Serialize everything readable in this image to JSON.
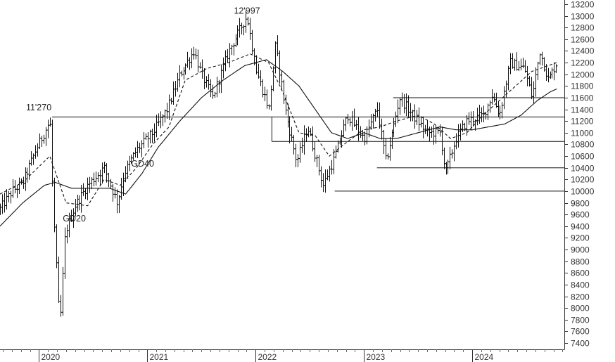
{
  "chart_data": {
    "type": "ohlc",
    "title": "",
    "xlabel": "",
    "ylabel": "",
    "ylim": [
      7400,
      13200
    ],
    "y_ticks": [
      7400,
      7600,
      7800,
      8000,
      8200,
      8400,
      8600,
      8800,
      9000,
      9200,
      9400,
      9600,
      9800,
      10000,
      10200,
      10400,
      10600,
      10800,
      11000,
      11200,
      11400,
      11600,
      11800,
      12000,
      12200,
      12400,
      12600,
      12800,
      13000,
      13200
    ],
    "x_range": [
      2019.64,
      2024.85
    ],
    "x_ticks": [
      {
        "label": "2020",
        "x": 2020.0
      },
      {
        "label": "2021",
        "x": 2021.0
      },
      {
        "label": "2022",
        "x": 2022.0
      },
      {
        "label": "2023",
        "x": 2023.0
      },
      {
        "label": "2024",
        "x": 2024.0
      }
    ],
    "price_keypoints": [
      [
        2019.64,
        9700
      ],
      [
        2019.75,
        10000
      ],
      [
        2019.85,
        10150
      ],
      [
        2019.97,
        10700
      ],
      [
        2020.1,
        11200
      ],
      [
        2020.13,
        9700
      ],
      [
        2020.19,
        7650
      ],
      [
        2020.24,
        9300
      ],
      [
        2020.33,
        9750
      ],
      [
        2020.45,
        10100
      ],
      [
        2020.6,
        10400
      ],
      [
        2020.72,
        9800
      ],
      [
        2020.78,
        10300
      ],
      [
        2020.9,
        10700
      ],
      [
        2021.05,
        11000
      ],
      [
        2021.18,
        11400
      ],
      [
        2021.3,
        12000
      ],
      [
        2021.43,
        12400
      ],
      [
        2021.5,
        12000
      ],
      [
        2021.6,
        11600
      ],
      [
        2021.75,
        12400
      ],
      [
        2021.92,
        12997
      ],
      [
        2022.0,
        12100
      ],
      [
        2022.12,
        11400
      ],
      [
        2022.18,
        12500
      ],
      [
        2022.28,
        11300
      ],
      [
        2022.38,
        10500
      ],
      [
        2022.48,
        11100
      ],
      [
        2022.62,
        10100
      ],
      [
        2022.72,
        10550
      ],
      [
        2022.85,
        11300
      ],
      [
        2023.0,
        10900
      ],
      [
        2023.12,
        11400
      ],
      [
        2023.2,
        10500
      ],
      [
        2023.33,
        11600
      ],
      [
        2023.45,
        11300
      ],
      [
        2023.58,
        11000
      ],
      [
        2023.7,
        11000
      ],
      [
        2023.75,
        10300
      ],
      [
        2023.85,
        10900
      ],
      [
        2023.95,
        11200
      ],
      [
        2024.1,
        11300
      ],
      [
        2024.18,
        11650
      ],
      [
        2024.25,
        11300
      ],
      [
        2024.35,
        12200
      ],
      [
        2024.48,
        12100
      ],
      [
        2024.55,
        11600
      ],
      [
        2024.62,
        12400
      ],
      [
        2024.7,
        11900
      ],
      [
        2024.78,
        12200
      ]
    ],
    "series": [
      {
        "name": "GD20",
        "style": "dashed",
        "keypoints": [
          [
            2019.64,
            9950
          ],
          [
            2019.85,
            10150
          ],
          [
            2020.1,
            10600
          ],
          [
            2020.25,
            9800
          ],
          [
            2020.45,
            9750
          ],
          [
            2020.6,
            10200
          ],
          [
            2020.75,
            10100
          ],
          [
            2020.9,
            10400
          ],
          [
            2021.05,
            10800
          ],
          [
            2021.2,
            11100
          ],
          [
            2021.35,
            11900
          ],
          [
            2021.55,
            12100
          ],
          [
            2021.75,
            12200
          ],
          [
            2021.95,
            12350
          ],
          [
            2022.12,
            12200
          ],
          [
            2022.25,
            11700
          ],
          [
            2022.4,
            11000
          ],
          [
            2022.55,
            10950
          ],
          [
            2022.68,
            10600
          ],
          [
            2022.85,
            10850
          ],
          [
            2023.0,
            11050
          ],
          [
            2023.15,
            11100
          ],
          [
            2023.3,
            11200
          ],
          [
            2023.5,
            11300
          ],
          [
            2023.65,
            11150
          ],
          [
            2023.8,
            10900
          ],
          [
            2023.95,
            11000
          ],
          [
            2024.1,
            11300
          ],
          [
            2024.25,
            11550
          ],
          [
            2024.4,
            11800
          ],
          [
            2024.55,
            12050
          ],
          [
            2024.78,
            12200
          ]
        ]
      },
      {
        "name": "GD40",
        "style": "solid",
        "keypoints": [
          [
            2019.64,
            9400
          ],
          [
            2019.85,
            9800
          ],
          [
            2020.05,
            10100
          ],
          [
            2020.15,
            10150
          ],
          [
            2020.3,
            10050
          ],
          [
            2020.5,
            10050
          ],
          [
            2020.65,
            10050
          ],
          [
            2020.8,
            9950
          ],
          [
            2020.95,
            10300
          ],
          [
            2021.1,
            10750
          ],
          [
            2021.3,
            11200
          ],
          [
            2021.5,
            11600
          ],
          [
            2021.7,
            11900
          ],
          [
            2021.9,
            12150
          ],
          [
            2022.1,
            12250
          ],
          [
            2022.25,
            12050
          ],
          [
            2022.4,
            11800
          ],
          [
            2022.55,
            11400
          ],
          [
            2022.7,
            11000
          ],
          [
            2022.85,
            10900
          ],
          [
            2023.0,
            11000
          ],
          [
            2023.15,
            10900
          ],
          [
            2023.3,
            10900
          ],
          [
            2023.5,
            11000
          ],
          [
            2023.7,
            11100
          ],
          [
            2023.85,
            11050
          ],
          [
            2024.0,
            11050
          ],
          [
            2024.15,
            11100
          ],
          [
            2024.3,
            11150
          ],
          [
            2024.45,
            11300
          ],
          [
            2024.6,
            11550
          ],
          [
            2024.72,
            11700
          ],
          [
            2024.78,
            11750
          ]
        ]
      }
    ],
    "reference_lines": [
      {
        "y": 11270,
        "x_from": 2020.12,
        "x_to": 2024.85,
        "vertical_drop_to": null
      },
      {
        "y": 11270,
        "x_from": 2022.15,
        "x_to": 2022.15,
        "vertical_drop_to": 10850
      },
      {
        "y": 10850,
        "x_from": 2022.15,
        "x_to": 2024.85,
        "vertical_drop_to": null
      },
      {
        "y": 11600,
        "x_from": 2023.27,
        "x_to": 2024.85,
        "vertical_drop_to": null
      },
      {
        "y": 10400,
        "x_from": 2023.12,
        "x_to": 2024.85,
        "vertical_drop_to": null
      },
      {
        "y": 10000,
        "x_from": 2022.73,
        "x_to": 2024.85,
        "vertical_drop_to": null
      }
    ],
    "annotations": [
      {
        "text": "11'270",
        "x": 2019.88,
        "y": 11380
      },
      {
        "text": "12'997",
        "x": 2021.8,
        "y": 13040
      },
      {
        "text": "GD40",
        "x": 2020.85,
        "y": 10420
      },
      {
        "text": "GD20",
        "x": 2020.22,
        "y": 9480
      }
    ],
    "grid": false,
    "legend": "none"
  }
}
